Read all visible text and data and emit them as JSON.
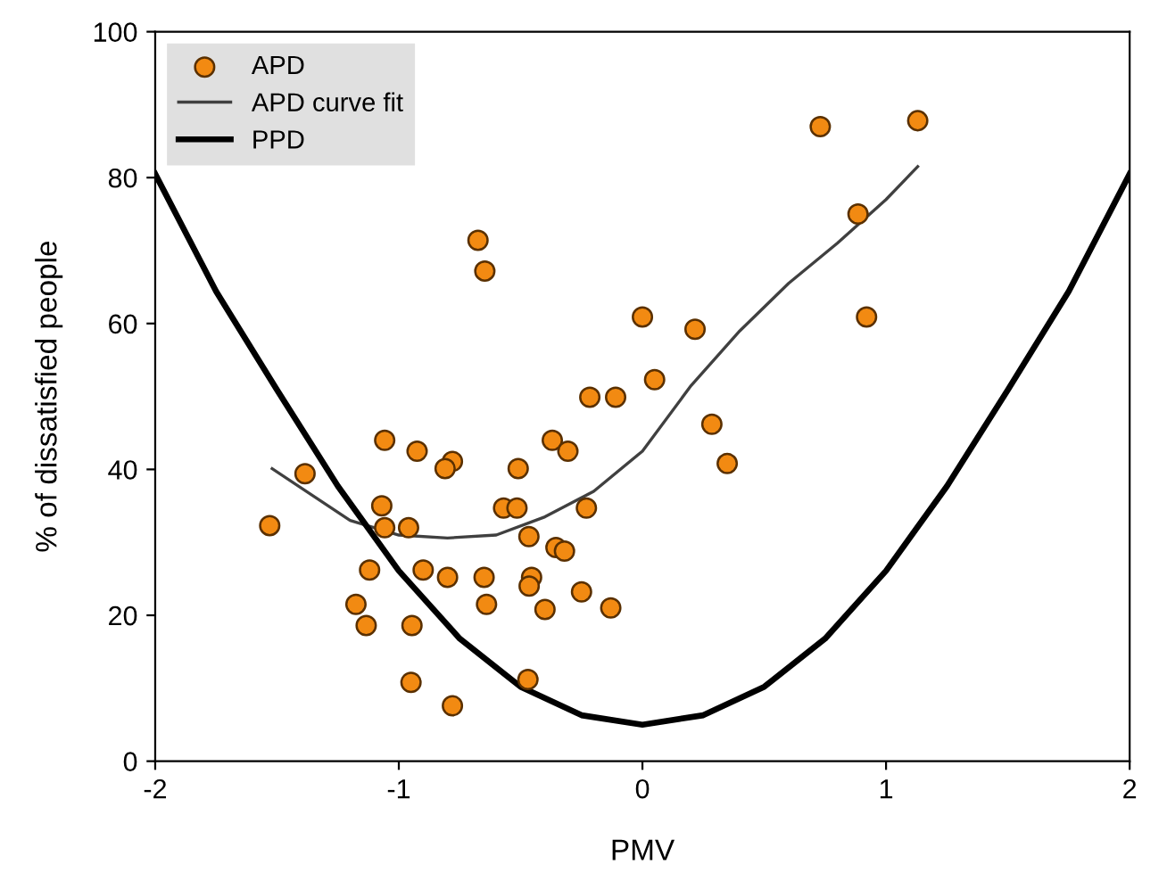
{
  "chart_data": {
    "type": "scatter",
    "xlabel": "PMV",
    "ylabel": "% of dissatisfied people",
    "xlim": [
      -2,
      2
    ],
    "ylim": [
      0,
      100
    ],
    "xticks": [
      -2,
      -1,
      0,
      1,
      2
    ],
    "yticks": [
      0,
      20,
      40,
      60,
      80,
      100
    ],
    "grid": false,
    "legend": "top left",
    "series": [
      {
        "name": "APD",
        "marker": "circle",
        "color": "#f28a12",
        "x": [
          -1.53,
          -1.385,
          -1.058,
          -0.925,
          -0.78,
          -0.81,
          -1.07,
          -1.058,
          -0.96,
          -1.12,
          -0.9,
          -0.8,
          -0.65,
          -1.176,
          -1.134,
          -0.946,
          -0.64,
          -0.95,
          -0.78,
          -0.47,
          -0.51,
          -0.57,
          -0.515,
          -0.466,
          -0.455,
          -0.465,
          -0.4,
          -0.355,
          -0.32,
          -0.23,
          -0.25,
          -0.13,
          -0.216,
          -0.11,
          -0.37,
          -0.306,
          0.0,
          0.216,
          0.05,
          0.285,
          0.348,
          0.92,
          0.885,
          -0.675,
          -0.647,
          1.13,
          0.73
        ],
        "values": [
          32.3,
          39.4,
          44.0,
          42.5,
          41.1,
          40.1,
          35.0,
          32.0,
          32.0,
          26.2,
          26.2,
          25.2,
          25.2,
          21.5,
          18.6,
          18.6,
          21.5,
          10.8,
          7.6,
          11.2,
          40.1,
          34.7,
          34.7,
          30.8,
          25.2,
          24.0,
          20.8,
          29.3,
          28.8,
          34.7,
          23.2,
          21.0,
          49.9,
          49.9,
          44.0,
          42.5,
          60.9,
          59.2,
          52.3,
          46.2,
          40.8,
          60.9,
          75.0,
          71.4,
          67.2,
          87.8,
          87.0
        ]
      },
      {
        "name": "APD curve fit",
        "type": "line",
        "marker": "none",
        "line_style": "solid",
        "color": "#404040",
        "x": [
          -1.52,
          -1.2,
          -1.0,
          -0.8,
          -0.6,
          -0.4,
          -0.2,
          0.0,
          0.2,
          0.4,
          0.6,
          0.8,
          1.0,
          1.13
        ],
        "values": [
          40.1,
          33,
          31,
          30.6,
          31,
          33.5,
          37,
          42.5,
          51.5,
          59,
          65.5,
          71,
          77,
          81.5
        ]
      },
      {
        "name": "PPD",
        "type": "line",
        "marker": "none",
        "line_style": "solid",
        "color": "#000000",
        "x": [
          -2,
          -1.75,
          -1.5,
          -1.25,
          -1,
          -0.75,
          -0.5,
          -0.25,
          0,
          0.25,
          0.5,
          0.75,
          1,
          1.25,
          1.5,
          1.75,
          2
        ],
        "values": [
          80.5,
          64.4,
          50.9,
          37.7,
          26.1,
          16.8,
          10.2,
          6.3,
          5,
          6.3,
          10.2,
          16.8,
          26.1,
          37.7,
          50.9,
          64.4,
          80.5
        ]
      }
    ]
  }
}
